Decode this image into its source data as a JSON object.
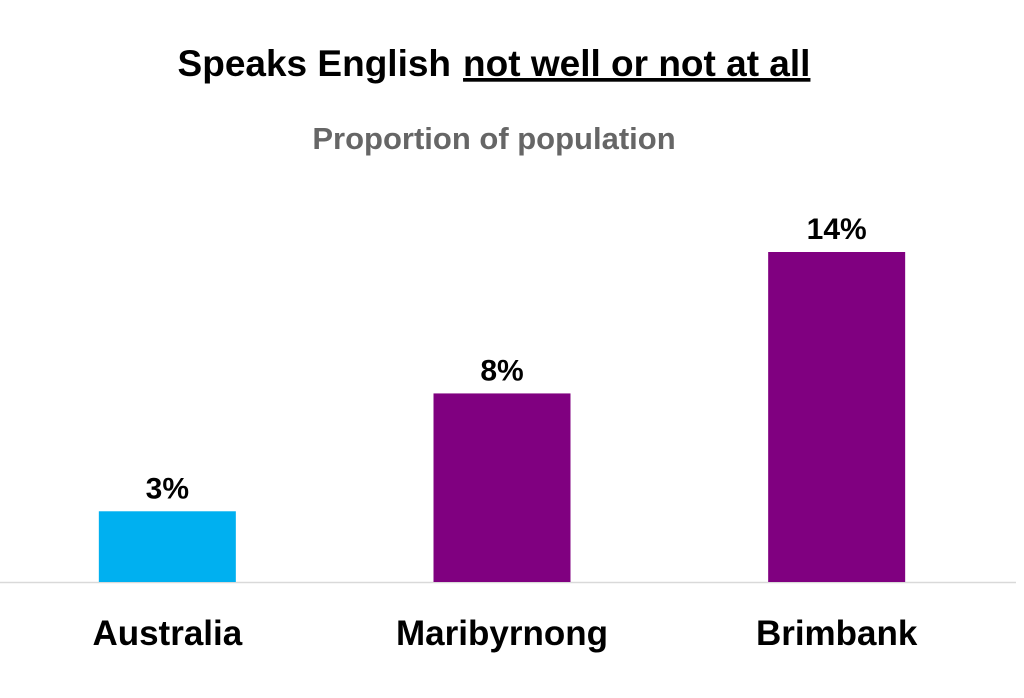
{
  "chart_data": {
    "type": "bar",
    "title": {
      "text": "Speaks English",
      "underlined": "not well or not at all"
    },
    "subtitle": "Proportion of population",
    "categories": [
      "Australia",
      "Maribyrnong",
      "Brimbank"
    ],
    "values": [
      3,
      8,
      14
    ],
    "value_labels": [
      "3%",
      "8%",
      "14%"
    ],
    "colors": [
      "#00b0f0",
      "#800080",
      "#800080"
    ]
  }
}
